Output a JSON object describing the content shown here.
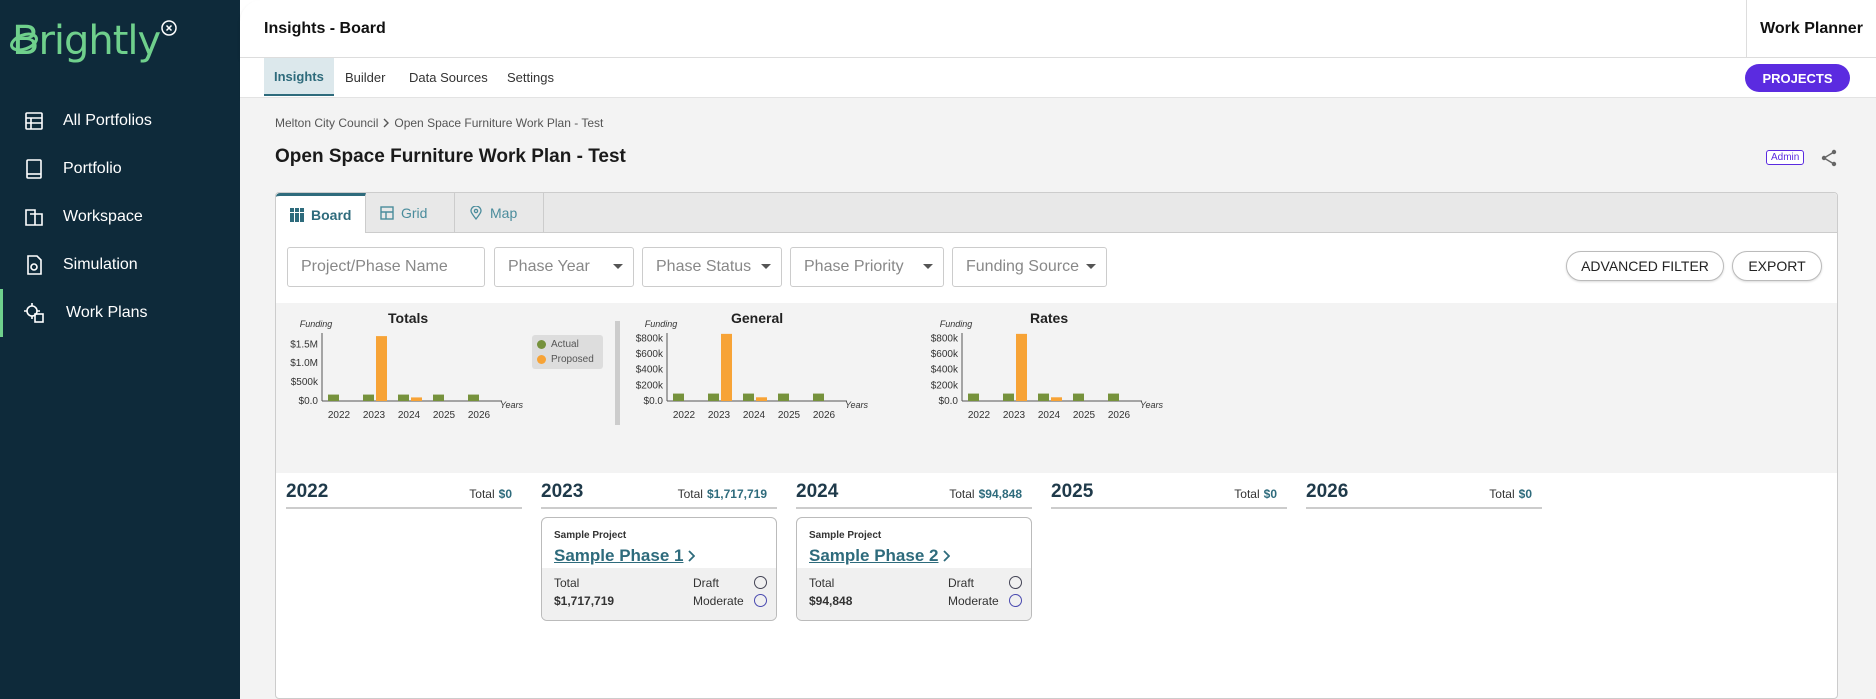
{
  "sidebar": {
    "logo": "Brightly",
    "items": [
      {
        "label": "All Portfolios",
        "icon": "portfolios-icon"
      },
      {
        "label": "Portfolio",
        "icon": "book-icon"
      },
      {
        "label": "Workspace",
        "icon": "workspace-icon"
      },
      {
        "label": "Simulation",
        "icon": "simulation-icon"
      },
      {
        "label": "Work Plans",
        "icon": "work-plans-icon",
        "active": true
      }
    ]
  },
  "topbar": {
    "title": "Insights - Board",
    "app_name": "Work Planner"
  },
  "subnav": {
    "tabs": [
      "Insights",
      "Builder",
      "Data Sources",
      "Settings"
    ],
    "active": "Insights",
    "projects_button": "PROJECTS"
  },
  "breadcrumb": {
    "parent": "Melton City Council",
    "current": "Open Space Furniture Work Plan - Test"
  },
  "page": {
    "title": "Open Space Furniture Work Plan - Test",
    "badge": "Admin"
  },
  "view_tabs": {
    "board": "Board",
    "grid": "Grid",
    "map": "Map",
    "active": "Board"
  },
  "filters": {
    "name_placeholder": "Project/Phase Name",
    "phase_year": "Phase Year",
    "phase_status": "Phase Status",
    "phase_priority": "Phase Priority",
    "funding_source": "Funding Source",
    "advanced_filter": "ADVANCED FILTER",
    "export": "EXPORT"
  },
  "chart_data": [
    {
      "type": "bar",
      "title": "Totals",
      "ylabel": "Funding",
      "xlabel": "Years",
      "categories": [
        "2022",
        "2023",
        "2024",
        "2025",
        "2026"
      ],
      "yticks": [
        "$0.0",
        "$500k",
        "$1.0M",
        "$1.5M"
      ],
      "ylim": [
        0,
        1800000
      ],
      "legend": "right",
      "series": [
        {
          "name": "Actual",
          "color": "#76923c",
          "values": [
            170000,
            170000,
            170000,
            170000,
            170000
          ]
        },
        {
          "name": "Proposed",
          "color": "#f7a336",
          "values": [
            0,
            1717719,
            94848,
            0,
            0
          ]
        }
      ]
    },
    {
      "type": "bar",
      "title": "General",
      "ylabel": "Funding",
      "xlabel": "Years",
      "categories": [
        "2022",
        "2023",
        "2024",
        "2025",
        "2026"
      ],
      "yticks": [
        "$0.0",
        "$200k",
        "$400k",
        "$600k",
        "$800k"
      ],
      "ylim": [
        0,
        870000
      ],
      "series": [
        {
          "name": "Actual",
          "color": "#76923c",
          "values": [
            95000,
            95000,
            95000,
            95000,
            95000
          ]
        },
        {
          "name": "Proposed",
          "color": "#f7a336",
          "values": [
            0,
            858860,
            47424,
            0,
            0
          ]
        }
      ]
    },
    {
      "type": "bar",
      "title": "Rates",
      "ylabel": "Funding",
      "xlabel": "Years",
      "categories": [
        "2022",
        "2023",
        "2024",
        "2025",
        "2026"
      ],
      "yticks": [
        "$0.0",
        "$200k",
        "$400k",
        "$600k",
        "$800k"
      ],
      "ylim": [
        0,
        870000
      ],
      "series": [
        {
          "name": "Actual",
          "color": "#76923c",
          "values": [
            95000,
            95000,
            95000,
            95000,
            95000
          ]
        },
        {
          "name": "Proposed",
          "color": "#f7a336",
          "values": [
            0,
            858860,
            47424,
            0,
            0
          ]
        }
      ]
    }
  ],
  "board": {
    "total_label": "Total",
    "years": [
      {
        "year": "2022",
        "total": "$0"
      },
      {
        "year": "2023",
        "total": "$1,717,719"
      },
      {
        "year": "2024",
        "total": "$94,848"
      },
      {
        "year": "2025",
        "total": "$0"
      },
      {
        "year": "2026",
        "total": "$0"
      }
    ],
    "cards": [
      {
        "project": "Sample Project",
        "phase": "Sample Phase 1",
        "total_label": "Total",
        "total": "$1,717,719",
        "status": "Draft",
        "priority": "Moderate"
      },
      {
        "project": "Sample Project",
        "phase": "Sample Phase 2",
        "total_label": "Total",
        "total": "$94,848",
        "status": "Draft",
        "priority": "Moderate"
      }
    ]
  }
}
